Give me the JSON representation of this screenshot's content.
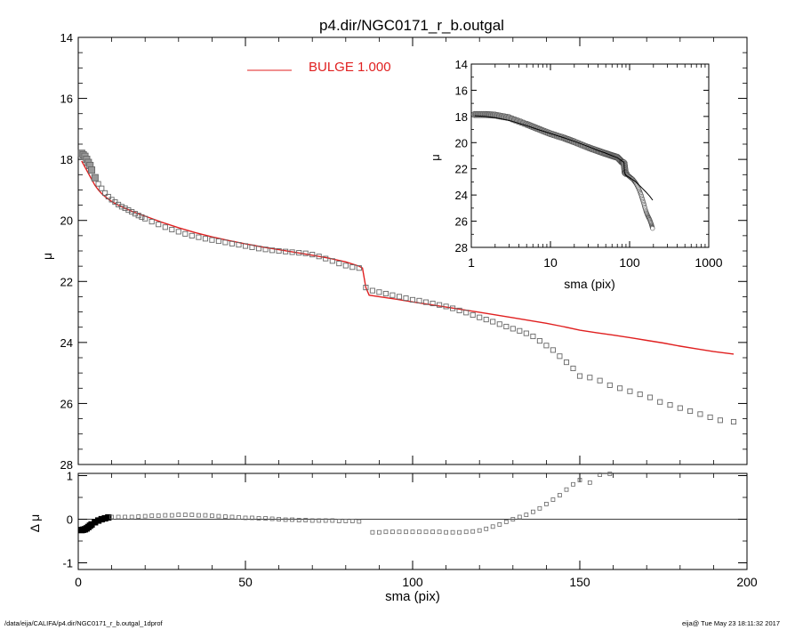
{
  "chart_data": [
    {
      "type": "scatter",
      "panel": "main",
      "title": "p4.dir/NGC0171_r_b.outgal",
      "xlabel": "",
      "ylabel": "μ",
      "xlim": [
        0,
        200
      ],
      "ylim": [
        28,
        14
      ],
      "y_inverted": true,
      "x_ticks": [
        0,
        50,
        100,
        150,
        200
      ],
      "y_ticks": [
        14,
        16,
        18,
        20,
        22,
        24,
        26,
        28
      ],
      "legend": {
        "placement": "top-left",
        "label": "BULGE  1.000",
        "color": "#e02020"
      },
      "series": [
        {
          "role": "observed",
          "marker": "open-square",
          "color": "#666666",
          "x": [
            1,
            1.5,
            2,
            2.5,
            3,
            3.5,
            4,
            5,
            6,
            7,
            8,
            9,
            10,
            11,
            12,
            13,
            14,
            15,
            16,
            17,
            18,
            19,
            20,
            22,
            24,
            26,
            28,
            30,
            32,
            34,
            36,
            38,
            40,
            42,
            44,
            46,
            48,
            50,
            52,
            54,
            56,
            58,
            60,
            62,
            64,
            66,
            68,
            70,
            72,
            74,
            76,
            78,
            80,
            82,
            84,
            86,
            88,
            90,
            92,
            94,
            96,
            98,
            100,
            102,
            104,
            106,
            108,
            110,
            112,
            114,
            116,
            118,
            120,
            122,
            124,
            126,
            128,
            130,
            132,
            134,
            136,
            138,
            140,
            142,
            144,
            146,
            148,
            150,
            153,
            156,
            159,
            162,
            165,
            168,
            171,
            174,
            177,
            180,
            183,
            186,
            189,
            192,
            196
          ],
          "y": [
            17.8,
            17.85,
            17.9,
            18.0,
            18.1,
            18.2,
            18.35,
            18.6,
            18.8,
            18.95,
            19.1,
            19.22,
            19.32,
            19.4,
            19.48,
            19.55,
            19.6,
            19.66,
            19.72,
            19.78,
            19.84,
            19.89,
            19.94,
            20.04,
            20.13,
            20.22,
            20.3,
            20.37,
            20.44,
            20.5,
            20.55,
            20.6,
            20.64,
            20.68,
            20.72,
            20.76,
            20.8,
            20.84,
            20.88,
            20.92,
            20.95,
            20.98,
            21.0,
            21.02,
            21.04,
            21.06,
            21.08,
            21.12,
            21.18,
            21.25,
            21.33,
            21.41,
            21.48,
            21.53,
            21.56,
            22.2,
            22.3,
            22.35,
            22.4,
            22.45,
            22.5,
            22.55,
            22.6,
            22.63,
            22.68,
            22.72,
            22.77,
            22.82,
            22.88,
            22.95,
            23.02,
            23.1,
            23.18,
            23.25,
            23.32,
            23.4,
            23.48,
            23.55,
            23.62,
            23.7,
            23.8,
            23.95,
            24.1,
            24.25,
            24.45,
            24.65,
            24.85,
            25.1,
            25.15,
            25.25,
            25.4,
            25.5,
            25.6,
            25.7,
            25.8,
            25.95,
            26.05,
            26.15,
            26.25,
            26.35,
            26.45,
            26.55,
            26.6
          ]
        },
        {
          "role": "model",
          "name": "BULGE  1.000",
          "marker": "line",
          "color": "#e02020",
          "x": [
            1,
            2,
            3,
            4,
            5,
            6,
            7,
            8,
            10,
            12,
            14,
            16,
            18,
            20,
            25,
            30,
            35,
            40,
            45,
            50,
            55,
            60,
            65,
            70,
            75,
            80,
            84,
            85,
            86,
            87,
            90,
            95,
            100,
            110,
            120,
            130,
            140,
            145,
            150,
            155,
            160,
            165,
            170,
            175,
            180,
            185,
            190,
            196
          ],
          "y": [
            18.05,
            18.25,
            18.45,
            18.65,
            18.85,
            19.0,
            19.12,
            19.22,
            19.38,
            19.5,
            19.6,
            19.7,
            19.78,
            19.86,
            20.06,
            20.24,
            20.4,
            20.54,
            20.66,
            20.77,
            20.87,
            20.96,
            21.05,
            21.14,
            21.24,
            21.36,
            21.5,
            21.56,
            22.2,
            22.45,
            22.5,
            22.58,
            22.67,
            22.84,
            23.01,
            23.19,
            23.37,
            23.48,
            23.6,
            23.68,
            23.76,
            23.84,
            23.93,
            24.02,
            24.12,
            24.21,
            24.3,
            24.38
          ]
        }
      ]
    },
    {
      "type": "scatter",
      "panel": "residual",
      "xlabel": "sma (pix)",
      "ylabel": "Δ μ",
      "xlim": [
        0,
        200
      ],
      "ylim": [
        -1,
        1
      ],
      "x_ticks": [
        0,
        50,
        100,
        150,
        200
      ],
      "y_ticks": [
        -1,
        0,
        1
      ],
      "zero_line": true,
      "series": [
        {
          "role": "residual",
          "marker": "open-square",
          "color": "#666666",
          "x": [
            1,
            1.5,
            2,
            2.5,
            3,
            3.5,
            4,
            5,
            6,
            7,
            8,
            9,
            10,
            12,
            14,
            16,
            18,
            20,
            22,
            24,
            26,
            28,
            30,
            32,
            34,
            36,
            38,
            40,
            42,
            44,
            46,
            48,
            50,
            52,
            54,
            56,
            58,
            60,
            62,
            64,
            66,
            68,
            70,
            72,
            74,
            76,
            78,
            80,
            82,
            84,
            88,
            90,
            92,
            94,
            96,
            98,
            100,
            102,
            104,
            106,
            108,
            110,
            112,
            114,
            116,
            118,
            120,
            122,
            124,
            126,
            128,
            130,
            132,
            134,
            136,
            138,
            140,
            142,
            144,
            146,
            148,
            150,
            153,
            156,
            159
          ],
          "y": [
            -0.25,
            -0.24,
            -0.23,
            -0.21,
            -0.18,
            -0.15,
            -0.12,
            -0.07,
            -0.03,
            0.0,
            0.02,
            0.04,
            0.05,
            0.05,
            0.05,
            0.05,
            0.06,
            0.07,
            0.08,
            0.08,
            0.09,
            0.09,
            0.1,
            0.1,
            0.1,
            0.09,
            0.09,
            0.08,
            0.07,
            0.06,
            0.05,
            0.04,
            0.03,
            0.03,
            0.02,
            0.02,
            0.01,
            0.0,
            -0.01,
            -0.01,
            -0.02,
            -0.02,
            -0.03,
            -0.03,
            -0.03,
            -0.03,
            -0.04,
            -0.04,
            -0.04,
            -0.05,
            -0.3,
            -0.3,
            -0.29,
            -0.29,
            -0.29,
            -0.29,
            -0.29,
            -0.29,
            -0.29,
            -0.29,
            -0.29,
            -0.3,
            -0.3,
            -0.3,
            -0.29,
            -0.28,
            -0.26,
            -0.22,
            -0.17,
            -0.12,
            -0.06,
            0.0,
            0.05,
            0.1,
            0.17,
            0.25,
            0.35,
            0.45,
            0.55,
            0.68,
            0.8,
            0.9,
            0.84,
            1.02,
            1.1
          ]
        }
      ]
    },
    {
      "type": "line",
      "panel": "inset",
      "xlabel": "sma (pix)",
      "ylabel": "μ",
      "x_scale": "log",
      "xlim": [
        1,
        1000
      ],
      "ylim": [
        28,
        14
      ],
      "y_inverted": true,
      "x_ticks": [
        1,
        10,
        100,
        1000
      ],
      "y_ticks": [
        14,
        16,
        18,
        20,
        22,
        24,
        26,
        28
      ],
      "series": [
        {
          "role": "observed",
          "marker": "circle-band",
          "color": "#555555",
          "x": [
            1.1,
            1.5,
            2,
            3,
            5,
            7,
            10,
            15,
            20,
            30,
            40,
            50,
            60,
            70,
            80,
            85,
            88,
            92,
            100,
            110,
            120,
            130,
            140,
            150,
            160,
            170,
            180,
            190,
            196
          ],
          "y": [
            17.85,
            17.85,
            17.9,
            18.1,
            18.6,
            18.95,
            19.32,
            19.66,
            19.94,
            20.37,
            20.64,
            20.84,
            21.0,
            21.12,
            21.48,
            21.56,
            22.3,
            22.4,
            22.6,
            22.8,
            23.1,
            23.5,
            24.0,
            24.6,
            25.2,
            25.6,
            25.9,
            26.3,
            26.6
          ]
        },
        {
          "role": "model",
          "marker": "line",
          "color": "#000000",
          "x": [
            1.1,
            1.5,
            2,
            3,
            5,
            7,
            10,
            15,
            20,
            30,
            40,
            50,
            60,
            70,
            80,
            85,
            86,
            90,
            100,
            120,
            140,
            160,
            180,
            196
          ],
          "y": [
            17.95,
            18.0,
            18.1,
            18.3,
            18.7,
            19.0,
            19.3,
            19.64,
            19.9,
            20.3,
            20.6,
            20.8,
            21.0,
            21.15,
            21.4,
            21.5,
            22.25,
            22.5,
            22.67,
            23.0,
            23.4,
            23.76,
            24.1,
            24.4
          ]
        }
      ]
    }
  ],
  "footer": {
    "left": "/data/eija/CALIFA/p4.dir/NGC0171_r_b.outgal_1dprof",
    "right": "eija@  Tue May 23 18:11:32 2017"
  }
}
